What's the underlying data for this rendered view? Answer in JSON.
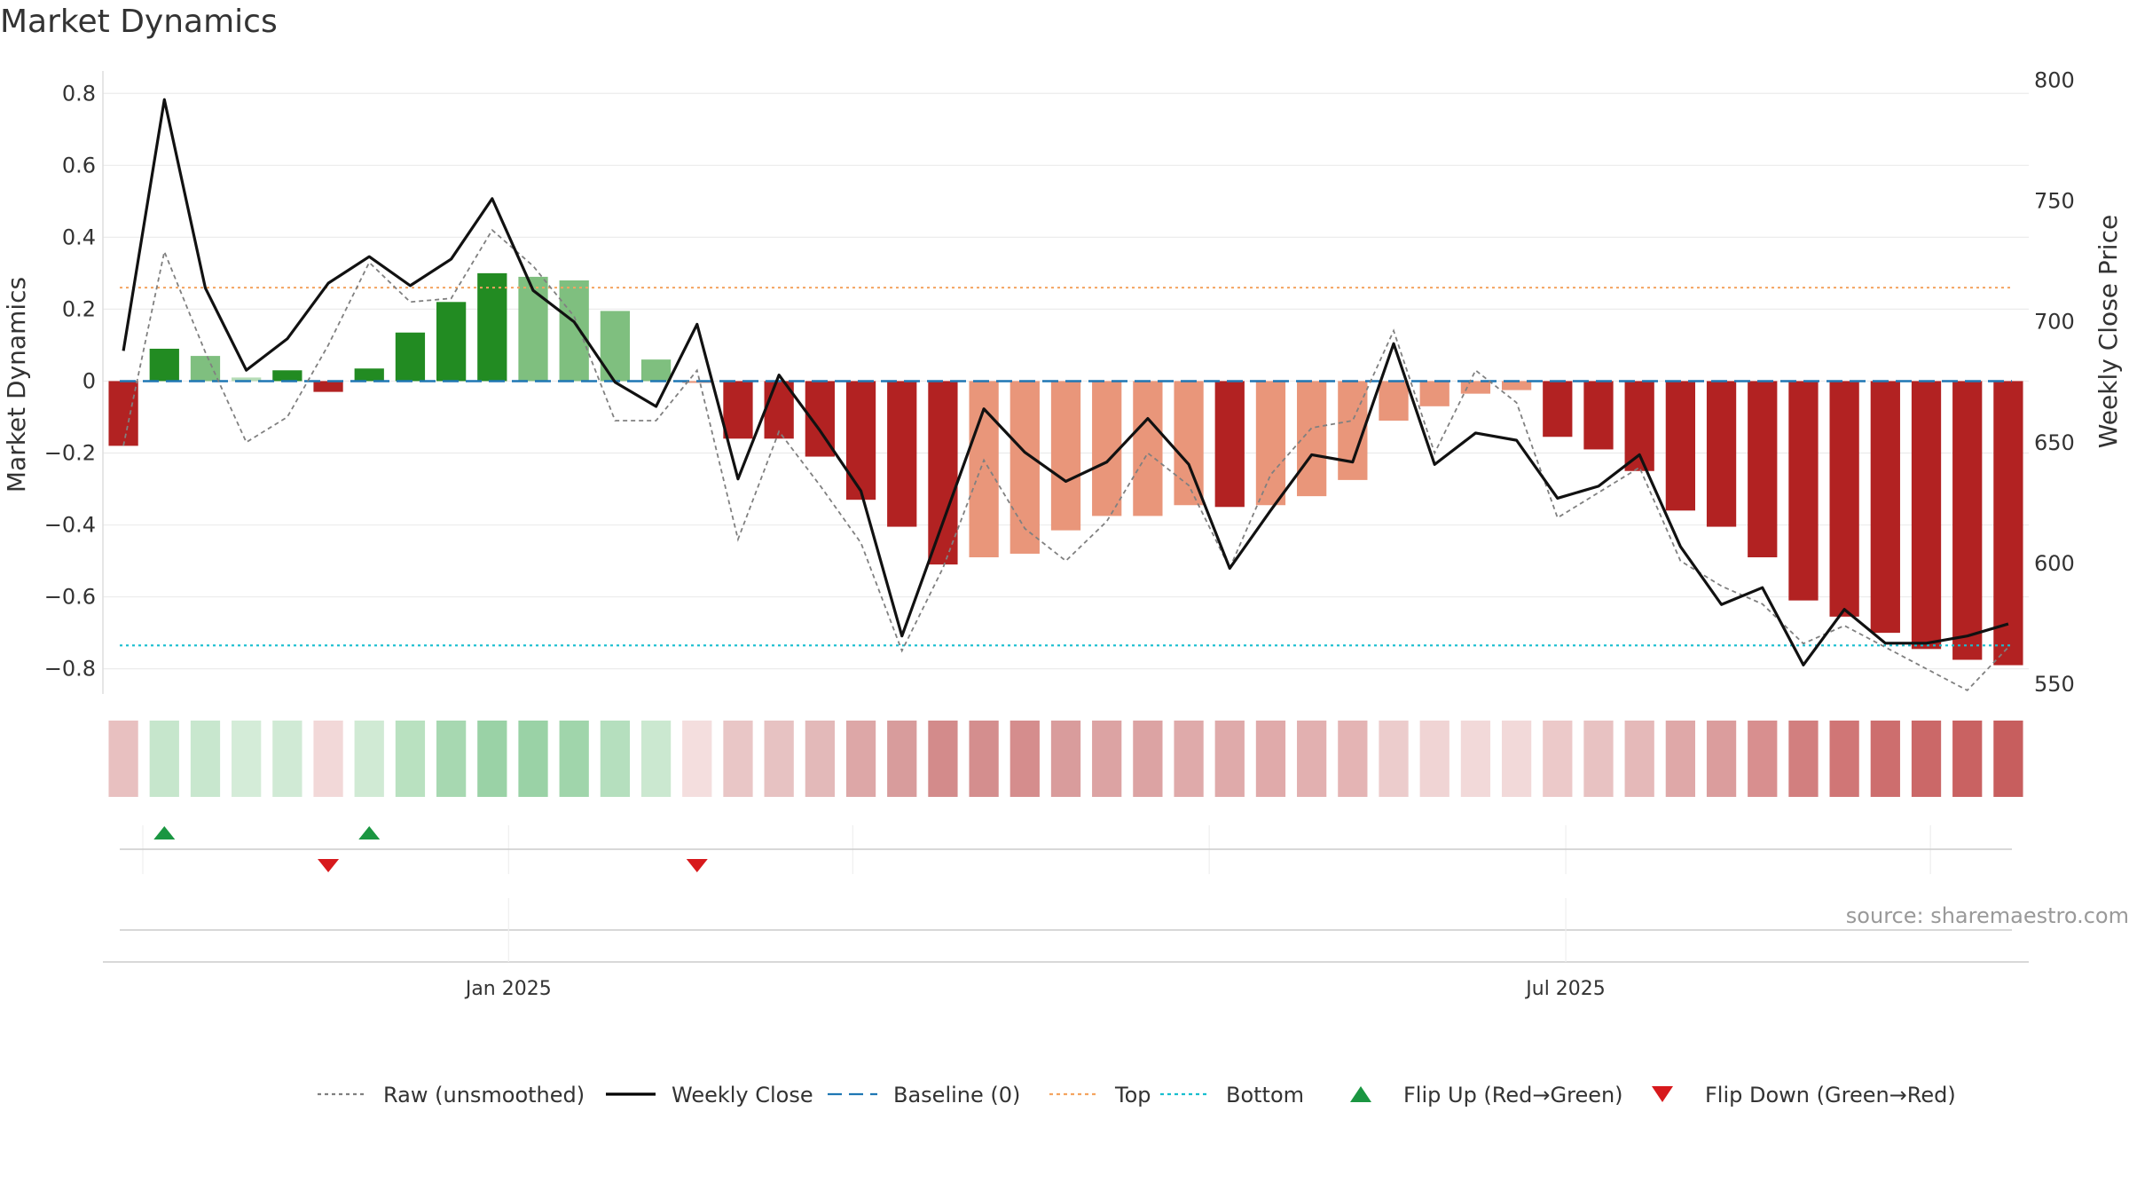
{
  "title": "Market Dynamics",
  "source": "source: sharemaestro.com",
  "chart_data": {
    "type": "bar",
    "ylabel_left": "Market Dynamics",
    "ylabel_right": "Weekly Close Price",
    "ylim_left": [
      -0.87,
      0.85
    ],
    "ylim_right": [
      546,
      802
    ],
    "yticks_left": [
      0.8,
      0.6,
      0.4,
      0.2,
      0,
      -0.2,
      -0.4,
      -0.6,
      -0.8
    ],
    "yticks_left_labels": [
      "0.8",
      "0.6",
      "0.4",
      "0.2",
      "0",
      "−0.2",
      "−0.4",
      "−0.6",
      "−0.8"
    ],
    "yticks_right": [
      800,
      750,
      700,
      650,
      600,
      550
    ],
    "x_labels": [
      {
        "label": "Jan 2025",
        "week": 9.4
      },
      {
        "label": "Jul 2025",
        "week": 35.2
      }
    ],
    "x_gridlines": [
      0.5,
      9.4,
      17.8,
      26.5,
      35.2,
      44.1
    ],
    "top_line": 0.26,
    "bottom_line": -0.735,
    "baseline": 0,
    "bars": [
      -0.18,
      0.09,
      0.07,
      0.01,
      0.03,
      -0.03,
      0.035,
      0.135,
      0.22,
      0.3,
      0.29,
      0.28,
      0.195,
      0.06,
      -0.005,
      -0.16,
      -0.16,
      -0.21,
      -0.33,
      -0.405,
      -0.51,
      -0.49,
      -0.48,
      -0.415,
      -0.375,
      -0.375,
      -0.345,
      -0.35,
      -0.345,
      -0.32,
      -0.275,
      -0.11,
      -0.07,
      -0.035,
      -0.025,
      -0.155,
      -0.19,
      -0.25,
      -0.36,
      -0.405,
      -0.49,
      -0.61,
      -0.655,
      -0.7,
      -0.745,
      -0.775,
      -0.79
    ],
    "bar_colors": [
      "#b22222",
      "#228b22",
      "#7fbf7f",
      "#b6dcb6",
      "#228b22",
      "#b22222",
      "#228b22",
      "#228b22",
      "#228b22",
      "#228b22",
      "#7fbf7f",
      "#7fbf7f",
      "#7fbf7f",
      "#7fbf7f",
      "#e9967a",
      "#b22222",
      "#b22222",
      "#b22222",
      "#b22222",
      "#b22222",
      "#b22222",
      "#e9967a",
      "#e9967a",
      "#e9967a",
      "#e9967a",
      "#e9967a",
      "#e9967a",
      "#b22222",
      "#e9967a",
      "#e9967a",
      "#e9967a",
      "#e9967a",
      "#e9967a",
      "#e9967a",
      "#e9967a",
      "#b22222",
      "#b22222",
      "#b22222",
      "#b22222",
      "#b22222",
      "#b22222",
      "#b22222",
      "#b22222",
      "#b22222",
      "#b22222",
      "#b22222",
      "#b22222"
    ],
    "strip_colors": [
      "#e8c0c0",
      "#c6e6cc",
      "#c8e7ce",
      "#d4ecd8",
      "#d0ead5",
      "#f2d8d8",
      "#d0ead4",
      "#b9e1c0",
      "#a7d8b1",
      "#9ad2a6",
      "#9ad2a6",
      "#a0d5ab",
      "#b5dfbe",
      "#cbe8d0",
      "#f4dede",
      "#e9c6c6",
      "#e7c2c2",
      "#e3b9b9",
      "#dda7a7",
      "#d89c9c",
      "#d38b8b",
      "#d48e8e",
      "#d58d8d",
      "#d99c9c",
      "#dca3a3",
      "#dca3a3",
      "#dfaaaa",
      "#dfaaaa",
      "#e0aaaa",
      "#e2b0b0",
      "#e4b4b4",
      "#eccccc",
      "#f0d4d4",
      "#f2d9d9",
      "#f2d9d9",
      "#ecc9c9",
      "#e8c2c2",
      "#e5b9b9",
      "#dfa8a8",
      "#db9d9d",
      "#d88f8f",
      "#d27f7f",
      "#d07676",
      "#cd6e6e",
      "#cb6868",
      "#c96262",
      "#c75e5e"
    ],
    "raw": [
      -0.18,
      0.36,
      0.08,
      -0.17,
      -0.1,
      0.1,
      0.33,
      0.22,
      0.23,
      0.42,
      0.32,
      0.18,
      -0.11,
      -0.11,
      0.03,
      -0.44,
      -0.14,
      -0.29,
      -0.45,
      -0.75,
      -0.52,
      -0.22,
      -0.41,
      -0.5,
      -0.39,
      -0.2,
      -0.29,
      -0.52,
      -0.26,
      -0.13,
      -0.11,
      0.14,
      -0.2,
      0.03,
      -0.06,
      -0.38,
      -0.31,
      -0.24,
      -0.5,
      -0.57,
      -0.62,
      -0.73,
      -0.68,
      -0.74,
      -0.8,
      -0.86,
      -0.74
    ],
    "weekly_close": [
      688,
      792,
      714,
      680,
      693,
      716,
      727,
      715,
      726,
      751,
      713,
      700,
      675,
      665,
      699,
      635,
      678,
      655,
      630,
      570,
      617,
      664,
      646,
      634,
      642,
      660,
      641,
      598,
      622,
      645,
      642,
      691,
      641,
      654,
      651,
      627,
      632,
      645,
      607,
      583,
      590,
      558,
      581,
      567,
      567,
      570,
      575
    ],
    "flip_up_weeks": [
      1,
      6
    ],
    "flip_down_weeks": [
      5,
      14
    ],
    "legend": [
      {
        "label": "Raw (unsmoothed)",
        "style": "dotted",
        "color": "#808080"
      },
      {
        "label": "Weekly Close",
        "style": "solid",
        "color": "#000000"
      },
      {
        "label": "Baseline (0)",
        "style": "dashed",
        "color": "#1f77b4"
      },
      {
        "label": "Top",
        "style": "dotted",
        "color": "#f4a460"
      },
      {
        "label": "Bottom",
        "style": "dotted",
        "color": "#17becf"
      },
      {
        "label": "Flip Up (Red→Green)",
        "style": "triangle-up",
        "color": "#1a9641"
      },
      {
        "label": "Flip Down (Green→Red)",
        "style": "triangle-down",
        "color": "#d7191c"
      }
    ]
  }
}
